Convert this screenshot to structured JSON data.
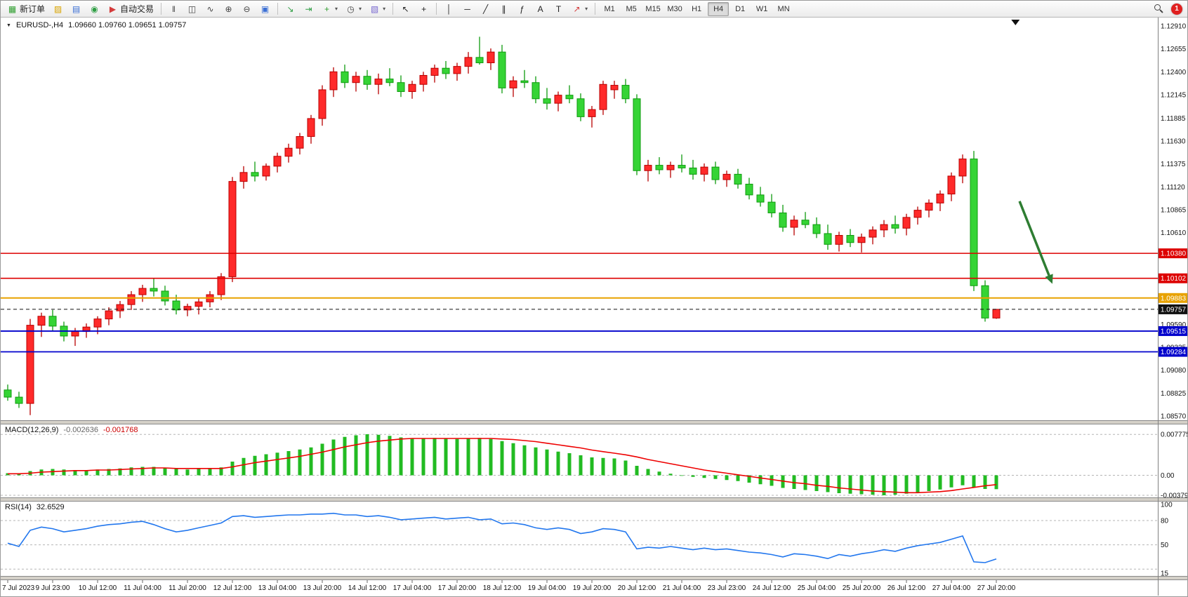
{
  "toolbar": {
    "notification_count": "1",
    "active_timeframe": "H4",
    "timeframes": [
      "M1",
      "M5",
      "M15",
      "M30",
      "H1",
      "H4",
      "D1",
      "W1",
      "MN"
    ],
    "items": [
      {
        "type": "button",
        "name": "new-order-button",
        "icon": "new-order-icon",
        "glyph": "▦",
        "color": "#2e9e2e",
        "label": "新订单"
      },
      {
        "type": "icon",
        "name": "data-window-button",
        "icon": "data-window-icon",
        "glyph": "▨",
        "color": "#d9a400"
      },
      {
        "type": "icon",
        "name": "profiles-button",
        "icon": "profiles-icon",
        "glyph": "▤",
        "color": "#3b6fd4"
      },
      {
        "type": "icon",
        "name": "navigator-button",
        "icon": "navigator-icon",
        "glyph": "◉",
        "color": "#2f9e44"
      },
      {
        "type": "button",
        "name": "autotrading-button",
        "icon": "autotrading-icon",
        "glyph": "▶",
        "color": "#d43b3b",
        "label": "自动交易"
      },
      {
        "type": "sep"
      },
      {
        "type": "icon",
        "name": "bar-chart-button",
        "icon": "bar-chart-icon",
        "glyph": "‖",
        "color": "#444"
      },
      {
        "type": "icon",
        "name": "candlestick-button",
        "icon": "candlestick-icon",
        "glyph": "◫",
        "color": "#444"
      },
      {
        "type": "icon",
        "name": "line-chart-button",
        "icon": "line-chart-icon",
        "glyph": "∿",
        "color": "#444"
      },
      {
        "type": "icon",
        "name": "zoom-in-button",
        "icon": "zoom-in-icon",
        "glyph": "⊕",
        "color": "#444"
      },
      {
        "type": "icon",
        "name": "zoom-out-button",
        "icon": "zoom-out-icon",
        "glyph": "⊖",
        "color": "#444"
      },
      {
        "type": "icon",
        "name": "tile-windows-button",
        "icon": "tile-windows-icon",
        "glyph": "▣",
        "color": "#3b6fd4"
      },
      {
        "type": "sep"
      },
      {
        "type": "icon",
        "name": "auto-scroll-button",
        "icon": "auto-scroll-icon",
        "glyph": "↘",
        "color": "#2f9e44"
      },
      {
        "type": "icon",
        "name": "chart-shift-button",
        "icon": "chart-shift-icon",
        "glyph": "⇥",
        "color": "#2f9e44"
      },
      {
        "type": "icon",
        "name": "indicators-button",
        "icon": "indicators-icon",
        "glyph": "+",
        "color": "#2e9e2e",
        "caret": true
      },
      {
        "type": "icon",
        "name": "periods-button",
        "icon": "periods-icon",
        "glyph": "◷",
        "color": "#444",
        "caret": true
      },
      {
        "type": "icon",
        "name": "templates-button",
        "icon": "templates-icon",
        "glyph": "▧",
        "color": "#7a6ad0",
        "caret": true
      },
      {
        "type": "sep"
      },
      {
        "type": "icon",
        "name": "cursor-button",
        "icon": "cursor-icon",
        "glyph": "↖",
        "color": "#222"
      },
      {
        "type": "icon",
        "name": "crosshair-button",
        "icon": "crosshair-icon",
        "glyph": "+",
        "color": "#222"
      },
      {
        "type": "sep"
      },
      {
        "type": "icon",
        "name": "vertical-line-button",
        "icon": "vertical-line-icon",
        "glyph": "│",
        "color": "#222"
      },
      {
        "type": "icon",
        "name": "horizontal-line-button",
        "icon": "horizontal-line-icon",
        "glyph": "─",
        "color": "#222"
      },
      {
        "type": "icon",
        "name": "trendline-button",
        "icon": "trendline-icon",
        "glyph": "╱",
        "color": "#222"
      },
      {
        "type": "icon",
        "name": "channel-button",
        "icon": "channel-icon",
        "glyph": "∥",
        "color": "#222"
      },
      {
        "type": "icon",
        "name": "fibonacci-button",
        "icon": "fibonacci-icon",
        "glyph": "ƒ",
        "color": "#222"
      },
      {
        "type": "icon",
        "name": "text-button",
        "icon": "text-icon",
        "glyph": "A",
        "color": "#222"
      },
      {
        "type": "icon",
        "name": "label-button",
        "icon": "label-icon",
        "glyph": "T",
        "color": "#222"
      },
      {
        "type": "icon",
        "name": "arrows-button",
        "icon": "arrows-icon",
        "glyph": "↗",
        "color": "#d43b3b",
        "caret": true
      },
      {
        "type": "sep"
      }
    ]
  },
  "chart_data": {
    "type": "candlestick",
    "symbol_title": "EURUSD-,H4",
    "ohlc_text": "1.09660 1.09760 1.09651 1.09757",
    "current": {
      "open": "1.09660",
      "high": "1.09760",
      "low": "1.09651",
      "close": "1.09757"
    },
    "price_max": 1.1291,
    "price_min": 1.0857,
    "price_axis": [
      "1.12910",
      "1.12655",
      "1.12400",
      "1.12145",
      "1.11885",
      "1.11630",
      "1.11375",
      "1.11120",
      "1.10865",
      "1.10610",
      "1.10355",
      "1.10100",
      "1.09845",
      "1.09590",
      "1.09335",
      "1.09080",
      "1.08825",
      "1.08570"
    ],
    "x_labels": [
      "7 Jul 2023",
      "9 Jul 23:00",
      "10 Jul 12:00",
      "11 Jul 04:00",
      "11 Jul 20:00",
      "12 Jul 12:00",
      "13 Jul 04:00",
      "13 Jul 20:00",
      "14 Jul 12:00",
      "17 Jul 04:00",
      "17 Jul 20:00",
      "18 Jul 12:00",
      "19 Jul 04:00",
      "19 Jul 20:00",
      "20 Jul 12:00",
      "21 Jul 04:00",
      "23 Jul 23:00",
      "24 Jul 12:00",
      "25 Jul 04:00",
      "25 Jul 20:00",
      "26 Jul 12:00",
      "27 Jul 04:00",
      "27 Jul 20:00"
    ],
    "x_label_every": 4,
    "candles": [
      [
        1.0886,
        1.0892,
        1.0874,
        1.0878
      ],
      [
        1.0878,
        1.0884,
        1.0866,
        1.0871
      ],
      [
        1.0871,
        1.0965,
        1.0858,
        1.0958
      ],
      [
        1.0958,
        1.0972,
        1.0945,
        1.0968
      ],
      [
        1.0968,
        1.0975,
        1.0952,
        1.0957
      ],
      [
        1.0957,
        1.0962,
        1.094,
        1.0946
      ],
      [
        1.0946,
        1.0955,
        1.0935,
        1.0951
      ],
      [
        1.0951,
        1.096,
        1.0944,
        1.0956
      ],
      [
        1.0956,
        1.0968,
        1.0948,
        1.0965
      ],
      [
        1.0965,
        1.0978,
        1.0958,
        1.0974
      ],
      [
        1.0974,
        1.0985,
        1.0966,
        1.0981
      ],
      [
        1.0981,
        1.0996,
        1.0975,
        1.0992
      ],
      [
        1.0992,
        1.1003,
        1.0984,
        1.0999
      ],
      [
        1.0999,
        1.101,
        1.099,
        1.0996
      ],
      [
        1.0996,
        1.1002,
        1.098,
        1.0985
      ],
      [
        1.0985,
        1.0992,
        1.097,
        1.0975
      ],
      [
        1.0975,
        1.0982,
        1.0968,
        1.0979
      ],
      [
        1.0979,
        1.0988,
        1.097,
        1.0984
      ],
      [
        1.0984,
        1.0996,
        1.0978,
        1.0992
      ],
      [
        1.0992,
        1.1016,
        1.0986,
        1.1012
      ],
      [
        1.1012,
        1.1123,
        1.1006,
        1.1118
      ],
      [
        1.1118,
        1.1135,
        1.111,
        1.1128
      ],
      [
        1.1128,
        1.114,
        1.1118,
        1.1124
      ],
      [
        1.1124,
        1.1138,
        1.1119,
        1.1135
      ],
      [
        1.1135,
        1.115,
        1.1128,
        1.1146
      ],
      [
        1.1146,
        1.116,
        1.1139,
        1.1155
      ],
      [
        1.1155,
        1.1172,
        1.1148,
        1.1168
      ],
      [
        1.1168,
        1.1192,
        1.116,
        1.1188
      ],
      [
        1.1188,
        1.1225,
        1.118,
        1.122
      ],
      [
        1.122,
        1.1245,
        1.1212,
        1.124
      ],
      [
        1.124,
        1.1248,
        1.1222,
        1.1228
      ],
      [
        1.1228,
        1.124,
        1.1218,
        1.1235
      ],
      [
        1.1235,
        1.1242,
        1.122,
        1.1226
      ],
      [
        1.1226,
        1.1238,
        1.1215,
        1.1232
      ],
      [
        1.1232,
        1.1244,
        1.1224,
        1.1228
      ],
      [
        1.1228,
        1.1236,
        1.1212,
        1.1218
      ],
      [
        1.1218,
        1.123,
        1.121,
        1.1226
      ],
      [
        1.1226,
        1.124,
        1.1218,
        1.1236
      ],
      [
        1.1236,
        1.1248,
        1.1228,
        1.1244
      ],
      [
        1.1244,
        1.1252,
        1.1232,
        1.1238
      ],
      [
        1.1238,
        1.125,
        1.123,
        1.1246
      ],
      [
        1.1246,
        1.1262,
        1.1238,
        1.1256
      ],
      [
        1.1256,
        1.1279,
        1.1248,
        1.125
      ],
      [
        1.125,
        1.1266,
        1.1242,
        1.1262
      ],
      [
        1.1262,
        1.127,
        1.1216,
        1.1222
      ],
      [
        1.1222,
        1.1235,
        1.1212,
        1.123
      ],
      [
        1.123,
        1.1242,
        1.1222,
        1.1228
      ],
      [
        1.1228,
        1.1235,
        1.1205,
        1.121
      ],
      [
        1.121,
        1.1222,
        1.1198,
        1.1205
      ],
      [
        1.1205,
        1.1218,
        1.1196,
        1.1214
      ],
      [
        1.1214,
        1.1225,
        1.1205,
        1.121
      ],
      [
        1.121,
        1.1216,
        1.1185,
        1.119
      ],
      [
        1.119,
        1.1202,
        1.1178,
        1.1198
      ],
      [
        1.1198,
        1.123,
        1.1192,
        1.1226
      ],
      [
        1.122,
        1.123,
        1.121,
        1.1225
      ],
      [
        1.1225,
        1.1232,
        1.1205,
        1.121
      ],
      [
        1.121,
        1.1215,
        1.1125,
        1.113
      ],
      [
        1.113,
        1.1142,
        1.1118,
        1.1136
      ],
      [
        1.1136,
        1.1145,
        1.1126,
        1.1131
      ],
      [
        1.1131,
        1.114,
        1.1122,
        1.1136
      ],
      [
        1.1136,
        1.1148,
        1.1128,
        1.1133
      ],
      [
        1.1133,
        1.1142,
        1.112,
        1.1126
      ],
      [
        1.1126,
        1.1138,
        1.1118,
        1.1134
      ],
      [
        1.1134,
        1.114,
        1.1115,
        1.112
      ],
      [
        1.112,
        1.113,
        1.1112,
        1.1126
      ],
      [
        1.1126,
        1.1132,
        1.111,
        1.1115
      ],
      [
        1.1115,
        1.1122,
        1.1098,
        1.1103
      ],
      [
        1.1103,
        1.1112,
        1.109,
        1.1095
      ],
      [
        1.1095,
        1.1104,
        1.1078,
        1.1083
      ],
      [
        1.1083,
        1.1092,
        1.1062,
        1.1067
      ],
      [
        1.1067,
        1.108,
        1.1058,
        1.1075
      ],
      [
        1.1075,
        1.1084,
        1.1066,
        1.107
      ],
      [
        1.107,
        1.1078,
        1.1055,
        1.106
      ],
      [
        1.106,
        1.107,
        1.1042,
        1.1048
      ],
      [
        1.1048,
        1.1062,
        1.104,
        1.1058
      ],
      [
        1.1058,
        1.1065,
        1.1045,
        1.105
      ],
      [
        1.105,
        1.106,
        1.1039,
        1.1056
      ],
      [
        1.1056,
        1.1068,
        1.1048,
        1.1064
      ],
      [
        1.1064,
        1.1075,
        1.1056,
        1.107
      ],
      [
        1.107,
        1.108,
        1.106,
        1.1066
      ],
      [
        1.1066,
        1.1082,
        1.1058,
        1.1078
      ],
      [
        1.1078,
        1.109,
        1.107,
        1.1086
      ],
      [
        1.1086,
        1.1098,
        1.1078,
        1.1094
      ],
      [
        1.1094,
        1.1108,
        1.1085,
        1.1104
      ],
      [
        1.1104,
        1.1128,
        1.1096,
        1.1124
      ],
      [
        1.1124,
        1.1148,
        1.1116,
        1.1143
      ],
      [
        1.1143,
        1.1152,
        1.0996,
        1.1002
      ],
      [
        1.1002,
        1.1008,
        1.0962,
        1.0966
      ],
      [
        1.0966,
        1.0976,
        1.09651,
        1.09757
      ]
    ],
    "levels": [
      {
        "price": 1.1038,
        "label": "1.10380",
        "color": "#dd0000",
        "style": "solid",
        "width": 1.4
      },
      {
        "price": 1.10102,
        "label": "1.10102",
        "color": "#dd0000",
        "style": "solid",
        "width": 1.6
      },
      {
        "price": 1.09883,
        "label": "1.09883",
        "color": "#e8a200",
        "style": "solid",
        "width": 2
      },
      {
        "price": 1.09757,
        "label": "1.09757",
        "color": "#111111",
        "style": "dashed",
        "width": 1
      },
      {
        "price": 1.09515,
        "label": "1.09515",
        "color": "#0000cc",
        "style": "solid",
        "width": 1.8
      },
      {
        "price": 1.09284,
        "label": "1.09284",
        "color": "#0000cc",
        "style": "solid",
        "width": 1.8
      }
    ],
    "macd": {
      "label": "MACD(12,26,9)",
      "main_value": "-0.002636",
      "signal_value": "-0.001768",
      "scale": [
        "0.007775",
        "0.00",
        "-0.003797"
      ],
      "histogram": [
        0.0004,
        0.0003,
        0.0008,
        0.0011,
        0.0012,
        0.0011,
        0.001,
        0.001,
        0.0011,
        0.0012,
        0.0013,
        0.0015,
        0.0016,
        0.0016,
        0.0014,
        0.0012,
        0.0011,
        0.0012,
        0.0013,
        0.0015,
        0.0026,
        0.0033,
        0.0037,
        0.004,
        0.0043,
        0.0046,
        0.0049,
        0.0053,
        0.006,
        0.0068,
        0.0073,
        0.0076,
        0.0078,
        0.0077,
        0.0075,
        0.0072,
        0.007,
        0.007,
        0.0071,
        0.007,
        0.0069,
        0.007,
        0.0071,
        0.0069,
        0.0065,
        0.0061,
        0.0057,
        0.0053,
        0.0049,
        0.0045,
        0.0042,
        0.0038,
        0.0034,
        0.0033,
        0.0032,
        0.0028,
        0.0018,
        0.0012,
        0.0007,
        0.0003,
        0.0,
        -0.0003,
        -0.0005,
        -0.0007,
        -0.0009,
        -0.0011,
        -0.0014,
        -0.0017,
        -0.002,
        -0.0024,
        -0.0026,
        -0.0028,
        -0.003,
        -0.0032,
        -0.0034,
        -0.0035,
        -0.0036,
        -0.0037,
        -0.0038,
        -0.0037,
        -0.0035,
        -0.0033,
        -0.003,
        -0.0027,
        -0.0023,
        -0.0019,
        -0.0023,
        -0.0026,
        -0.00264
      ],
      "signal": [
        0.0003,
        0.0003,
        0.0004,
        0.0006,
        0.0007,
        0.0008,
        0.0009,
        0.0009,
        0.001,
        0.001,
        0.0011,
        0.0012,
        0.0013,
        0.0014,
        0.0014,
        0.0013,
        0.0013,
        0.0013,
        0.0013,
        0.0013,
        0.0016,
        0.002,
        0.0024,
        0.0027,
        0.003,
        0.0033,
        0.0036,
        0.004,
        0.0044,
        0.0049,
        0.0054,
        0.0058,
        0.0062,
        0.0065,
        0.0067,
        0.0069,
        0.007,
        0.007,
        0.007,
        0.007,
        0.007,
        0.007,
        0.007,
        0.007,
        0.0069,
        0.0068,
        0.0066,
        0.0064,
        0.0061,
        0.0058,
        0.0055,
        0.0052,
        0.0048,
        0.0045,
        0.0042,
        0.0039,
        0.0035,
        0.003,
        0.0026,
        0.0022,
        0.0018,
        0.0014,
        0.001,
        0.0007,
        0.0004,
        0.0001,
        -0.0002,
        -0.0005,
        -0.0008,
        -0.0011,
        -0.0014,
        -0.0016,
        -0.0019,
        -0.0021,
        -0.0024,
        -0.0026,
        -0.0028,
        -0.003,
        -0.0031,
        -0.0032,
        -0.0033,
        -0.0033,
        -0.0032,
        -0.0031,
        -0.0029,
        -0.0026,
        -0.0023,
        -0.002,
        -0.00177
      ]
    },
    "rsi": {
      "label": "RSI(14)",
      "value": "32.6529",
      "scale": [
        100,
        80,
        50,
        15
      ],
      "levels": [
        80,
        50,
        20
      ],
      "values": [
        52,
        48,
        68,
        72,
        70,
        66,
        68,
        70,
        73,
        75,
        76,
        78,
        79,
        75,
        70,
        66,
        68,
        71,
        74,
        77,
        85,
        86,
        84,
        85,
        86,
        87,
        87,
        88,
        88,
        89,
        87,
        87,
        85,
        86,
        84,
        81,
        82,
        83,
        84,
        82,
        83,
        84,
        81,
        82,
        76,
        77,
        75,
        71,
        69,
        71,
        69,
        64,
        66,
        70,
        69,
        66,
        45,
        47,
        46,
        48,
        46,
        44,
        46,
        44,
        45,
        43,
        41,
        40,
        38,
        35,
        39,
        38,
        36,
        33,
        38,
        36,
        39,
        41,
        44,
        42,
        46,
        49,
        51,
        53,
        57,
        61,
        29,
        28,
        32.65
      ]
    },
    "annotation_arrow": {
      "x1_frac": 0.8805,
      "p1": 1.1096,
      "x2_frac": 0.9089,
      "p2": 1.1004,
      "color": "#2e7d32"
    },
    "top_marker": {
      "x_frac": 0.877
    },
    "colors": {
      "bull": "#ff2a2a",
      "bull_stroke": "#b80000",
      "bear": "#35d435",
      "bear_stroke": "#0f9b0f",
      "macd_hist": "#22bb22",
      "macd_signal": "#ee0000",
      "rsi_line": "#2277ee"
    }
  }
}
